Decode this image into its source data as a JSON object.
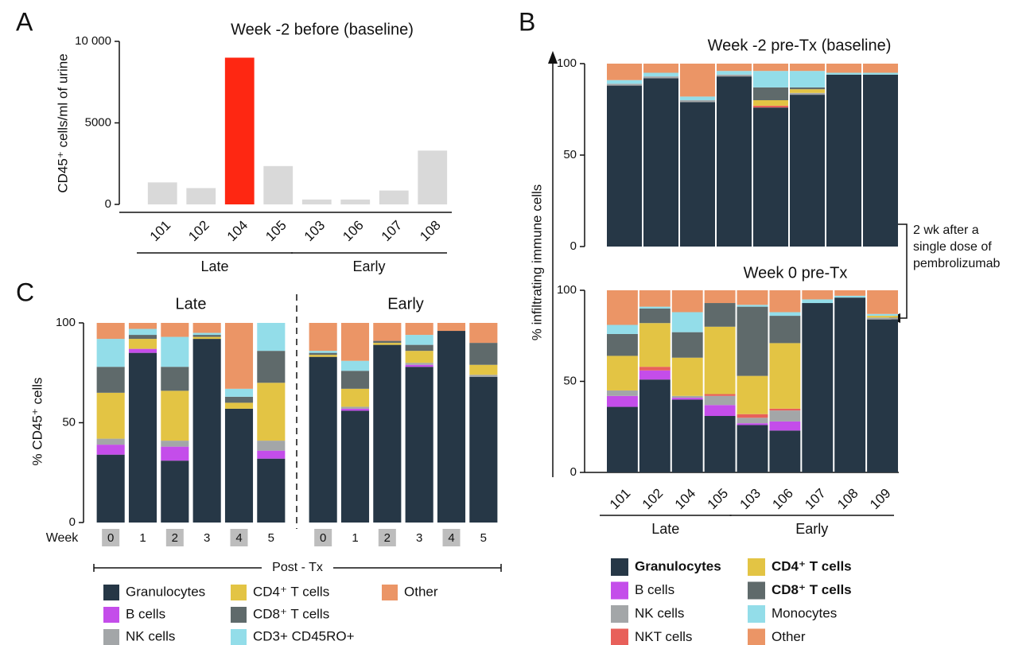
{
  "chart_data": [
    {
      "type": "bar",
      "panel": "A",
      "title": "Week -2 before (baseline)",
      "ylabel": "CD45⁺ cells/ml of urine",
      "categories": [
        "101",
        "102",
        "104",
        "105",
        "103",
        "106",
        "107",
        "108"
      ],
      "values": [
        1350,
        1000,
        9000,
        2350,
        300,
        300,
        850,
        3300
      ],
      "colors": [
        "#d9d9d9",
        "#d9d9d9",
        "#fe2712",
        "#d9d9d9",
        "#d9d9d9",
        "#d9d9d9",
        "#d9d9d9",
        "#d9d9d9"
      ],
      "ylim": [
        0,
        10000
      ],
      "yticks": [
        0,
        5000,
        {
          "value": 10000,
          "label": "10 000"
        }
      ],
      "groups": [
        {
          "name": "Late",
          "categories": [
            "101",
            "102",
            "104",
            "105"
          ]
        },
        {
          "name": "Early",
          "categories": [
            "103",
            "106",
            "107",
            "108"
          ]
        }
      ]
    },
    {
      "type": "stacked_bar",
      "panel": "B",
      "title": "Week -2 pre-Tx (baseline)",
      "ylabel": "% infiltrating immune cells",
      "categories": [
        null,
        null,
        null,
        null,
        null,
        null,
        null,
        null
      ],
      "ylim": [
        0,
        100
      ],
      "yticks": [
        0,
        50,
        100
      ],
      "series": [
        {
          "name": "Granulocytes",
          "color": "#263746",
          "values": [
            88,
            92,
            79,
            93,
            76,
            83,
            94,
            94
          ]
        },
        {
          "name": "B cells",
          "color": "#c44dea",
          "values": [
            0,
            0,
            0,
            0,
            0,
            0,
            0,
            0
          ]
        },
        {
          "name": "NK cells",
          "color": "#a3a6a8",
          "values": [
            1,
            1,
            1,
            1,
            0,
            1,
            0,
            0
          ]
        },
        {
          "name": "NKT cells",
          "color": "#e8605a",
          "values": [
            0,
            0,
            0,
            0,
            1,
            0,
            0,
            0
          ]
        },
        {
          "name": "CD4⁺ T cells",
          "color": "#e3c444",
          "values": [
            0,
            0,
            0,
            0,
            3,
            2,
            0,
            0
          ]
        },
        {
          "name": "CD8⁺ T cells",
          "color": "#5f6a6b",
          "values": [
            0,
            0,
            0,
            0,
            7,
            1,
            0,
            0
          ]
        },
        {
          "name": "Monocytes",
          "color": "#93dde9",
          "values": [
            2,
            2,
            2,
            2,
            9,
            9,
            1,
            1
          ]
        },
        {
          "name": "Other",
          "color": "#eb9566",
          "values": [
            9,
            5,
            18,
            4,
            4,
            4,
            5,
            5
          ]
        }
      ]
    },
    {
      "type": "stacked_bar",
      "title": "Week 0 pre-Tx",
      "categories": [
        "101",
        "102",
        "104",
        "105",
        "103",
        "106",
        "107",
        "108",
        "109"
      ],
      "ylim": [
        0,
        100
      ],
      "yticks": [
        0,
        50,
        100
      ],
      "annotation": [
        "2 wk   after a",
        "single dose of",
        "pembrolizumab"
      ],
      "groups": [
        {
          "name": "Late",
          "categories": [
            "101",
            "102",
            "104",
            "105"
          ]
        },
        {
          "name": "Early",
          "categories": [
            "103",
            "106",
            "107",
            "108",
            "109"
          ]
        }
      ],
      "legend": "bottom",
      "series": [
        {
          "name": "Granulocytes",
          "color": "#263746",
          "bold": true,
          "values": [
            36,
            51,
            40,
            31,
            26,
            23,
            93,
            96,
            84
          ]
        },
        {
          "name": "B cells",
          "color": "#c44dea",
          "values": [
            6,
            5,
            1,
            6,
            1,
            5,
            0,
            0,
            0
          ]
        },
        {
          "name": "NK cells",
          "color": "#a3a6a8",
          "values": [
            3,
            0,
            1,
            5,
            3,
            6,
            0,
            0,
            1
          ]
        },
        {
          "name": "NKT cells",
          "color": "#e8605a",
          "values": [
            0,
            2,
            0,
            1,
            2,
            1,
            0,
            0,
            0
          ]
        },
        {
          "name": "CD4⁺ T cells",
          "color": "#e3c444",
          "bold": true,
          "values": [
            19,
            24,
            21,
            37,
            21,
            36,
            0,
            0,
            1
          ]
        },
        {
          "name": "CD8⁺ T cells",
          "color": "#5f6a6b",
          "bold": true,
          "values": [
            12,
            8,
            14,
            13,
            38,
            15,
            0,
            0,
            0
          ]
        },
        {
          "name": "Monocytes",
          "color": "#93dde9",
          "values": [
            5,
            1,
            11,
            0,
            1,
            2,
            2,
            1,
            1
          ]
        },
        {
          "name": "Other",
          "color": "#eb9566",
          "values": [
            19,
            9,
            12,
            7,
            8,
            12,
            5,
            3,
            13
          ]
        }
      ]
    },
    {
      "type": "stacked_bar",
      "panel": "C",
      "title": "Late",
      "ylabel": "% CD45⁺ cells",
      "xlabel": "Week",
      "categories": [
        "0",
        "1",
        "2",
        "3",
        "4",
        "5"
      ],
      "highlight": [
        true,
        false,
        true,
        false,
        true,
        false
      ],
      "ylim": [
        0,
        100
      ],
      "yticks": [
        0,
        50,
        100
      ],
      "annotation": "Post - Tx",
      "legend": "bottom",
      "series": [
        {
          "name": "Granulocytes",
          "color": "#263746",
          "values": [
            34,
            85,
            31,
            92,
            57,
            32
          ]
        },
        {
          "name": "B cells",
          "color": "#c44dea",
          "values": [
            5,
            2,
            7,
            0,
            0,
            4
          ]
        },
        {
          "name": "NK cells",
          "color": "#a3a6a8",
          "values": [
            3,
            0,
            3,
            0,
            0,
            5
          ]
        },
        {
          "name": "CD4⁺ T cells",
          "color": "#e3c444",
          "values": [
            23,
            5,
            25,
            1,
            3,
            29
          ]
        },
        {
          "name": "CD8⁺ T cells",
          "color": "#5f6a6b",
          "values": [
            13,
            2,
            12,
            1,
            3,
            16
          ]
        },
        {
          "name": "CD3+ CD45RO+",
          "color": "#93dde9",
          "values": [
            14,
            3,
            15,
            1,
            4,
            14
          ]
        },
        {
          "name": "Other",
          "color": "#eb9566",
          "values": [
            8,
            3,
            7,
            5,
            33,
            0
          ]
        }
      ]
    },
    {
      "type": "stacked_bar",
      "title": "Early",
      "categories": [
        "0",
        "1",
        "2",
        "3",
        "4",
        "5"
      ],
      "highlight": [
        true,
        false,
        true,
        false,
        true,
        false
      ],
      "ylim": [
        0,
        100
      ],
      "series": [
        {
          "name": "Granulocytes",
          "color": "#263746",
          "values": [
            83,
            56,
            89,
            78,
            96,
            73
          ]
        },
        {
          "name": "B cells",
          "color": "#c44dea",
          "values": [
            0,
            1,
            0,
            1,
            0,
            0
          ]
        },
        {
          "name": "NK cells",
          "color": "#a3a6a8",
          "values": [
            0,
            1,
            0,
            1,
            0,
            1
          ]
        },
        {
          "name": "CD4⁺ T cells",
          "color": "#e3c444",
          "values": [
            1,
            9,
            1,
            6,
            0,
            5
          ]
        },
        {
          "name": "CD8⁺ T cells",
          "color": "#5f6a6b",
          "values": [
            1,
            9,
            1,
            3,
            0,
            11
          ]
        },
        {
          "name": "CD3+ CD45RO+",
          "color": "#93dde9",
          "values": [
            1,
            5,
            0,
            5,
            0,
            0
          ]
        },
        {
          "name": "Other",
          "color": "#eb9566",
          "values": [
            14,
            19,
            9,
            6,
            4,
            10
          ]
        }
      ]
    }
  ]
}
